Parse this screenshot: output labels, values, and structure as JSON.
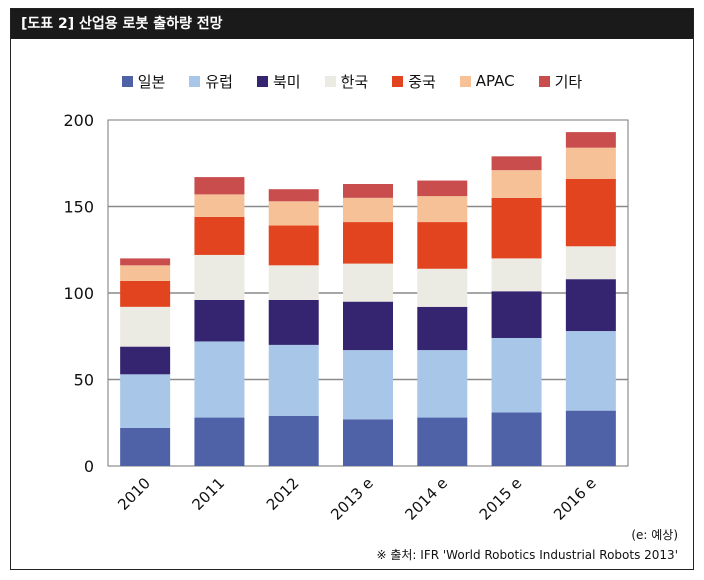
{
  "header": {
    "title": "[도표 2] 산업용 로봇 출하량 전망"
  },
  "notes": {
    "estimate": "(e: 예상)",
    "source": "※ 출처: IFR 'World Robotics Industrial Robots 2013'"
  },
  "chart_data": {
    "type": "bar",
    "stacked": true,
    "categories": [
      "2010",
      "2011",
      "2012",
      "2013 e",
      "2014 e",
      "2015 e",
      "2016 e"
    ],
    "series": [
      {
        "name": "일본",
        "color": "#4f62a8",
        "values": [
          22,
          28,
          29,
          27,
          28,
          31,
          32
        ]
      },
      {
        "name": "유럽",
        "color": "#a8c6e8",
        "values": [
          31,
          44,
          41,
          40,
          39,
          43,
          46
        ]
      },
      {
        "name": "북미",
        "color": "#352571",
        "values": [
          16,
          24,
          26,
          28,
          25,
          27,
          30
        ]
      },
      {
        "name": "한국",
        "color": "#ecebe3",
        "values": [
          23,
          26,
          20,
          22,
          22,
          19,
          19
        ]
      },
      {
        "name": "중국",
        "color": "#e2441f",
        "values": [
          15,
          22,
          23,
          24,
          27,
          35,
          39
        ]
      },
      {
        "name": "APAC",
        "color": "#f6c196",
        "values": [
          9,
          13,
          14,
          14,
          15,
          16,
          18
        ]
      },
      {
        "name": "기타",
        "color": "#c94d4d",
        "values": [
          4,
          10,
          7,
          8,
          9,
          8,
          9
        ]
      }
    ],
    "yticks": [
      0,
      50,
      100,
      150,
      200
    ],
    "ylim": [
      0,
      200
    ],
    "grid": true,
    "legend": "top"
  }
}
